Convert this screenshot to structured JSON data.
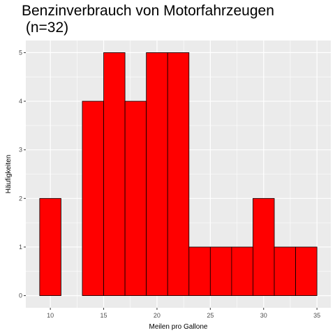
{
  "chart_data": {
    "type": "bar",
    "title": "Benzinverbrauch von Motorfahrzeugen\n (n=32)",
    "xlabel": "Meilen pro Gallone",
    "ylabel": "Häufigkeiten",
    "bin_edges": [
      9,
      11,
      13,
      15,
      17,
      19,
      21,
      23,
      25,
      27,
      29,
      31,
      33,
      35
    ],
    "counts": [
      2,
      0,
      4,
      5,
      4,
      5,
      5,
      1,
      1,
      1,
      2,
      1,
      1
    ],
    "xlim": [
      7.7,
      36.3
    ],
    "ylim": [
      -0.25,
      5.25
    ],
    "x_ticks": [
      10,
      15,
      20,
      25,
      30,
      35
    ],
    "y_ticks": [
      0,
      1,
      2,
      3,
      4,
      5
    ],
    "bar_fill": "#ff0000",
    "bar_outline": "#000000",
    "panel_background": "#ebebeb",
    "grid_color": "#ffffff",
    "grid": true
  }
}
